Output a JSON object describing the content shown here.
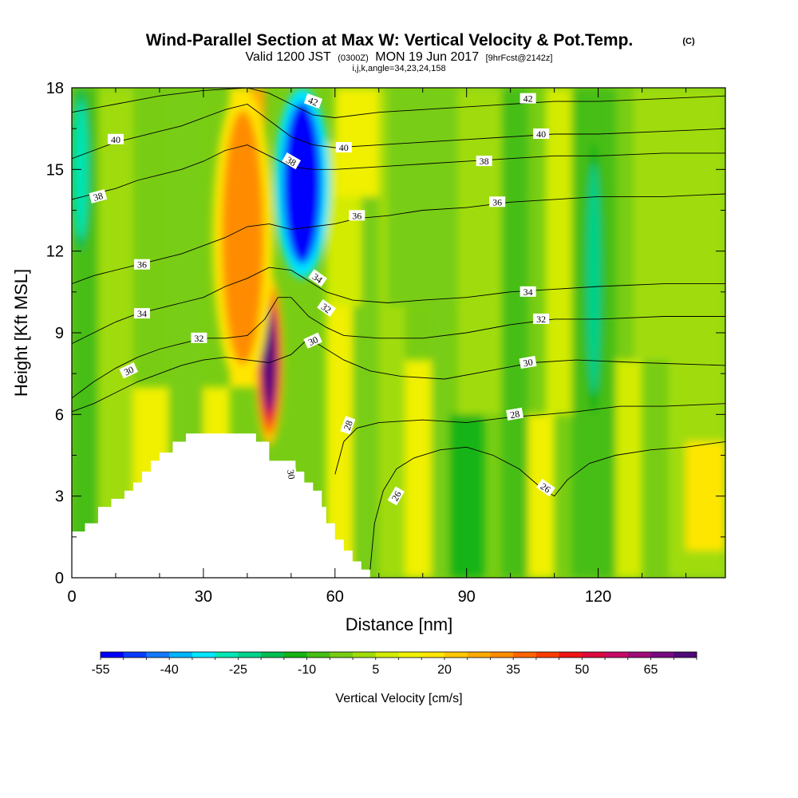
{
  "title": "Wind-Parallel Section at Max W: Vertical Velocity & Pot.Temp.",
  "title_mark": "(C)",
  "subtitle_valid": "Valid 1200 JST",
  "subtitle_zulu": "(0300Z)",
  "subtitle_date": "MON 19 Jun 2017",
  "subtitle_fcst": "[9hrFcst@2142z]",
  "params": "i,j,k,angle=34,23,24,158",
  "chart_data": {
    "type": "heatmap",
    "xlabel": "Distance [nm]",
    "ylabel": "Height [Kft MSL]",
    "xlim": [
      0,
      149
    ],
    "ylim": [
      0,
      18
    ],
    "x_ticks": [
      0,
      30,
      60,
      90,
      120
    ],
    "y_ticks": [
      0,
      3,
      6,
      9,
      12,
      15,
      18
    ],
    "field_filled": "Vertical Velocity",
    "field_contoured": "Potential Temperature",
    "colorbar": {
      "label": "Vertical Velocity [cm/s]",
      "min": -55,
      "max": 80,
      "step": 5,
      "tick_labels": [
        -55,
        -40,
        -25,
        -10,
        5,
        20,
        35,
        50,
        65
      ],
      "colors": [
        "#0000ff",
        "#0a3cff",
        "#1478ff",
        "#00b4ff",
        "#00e6ff",
        "#00e6b4",
        "#00d28c",
        "#00be50",
        "#14b414",
        "#46be14",
        "#78cd14",
        "#a0dc0a",
        "#d2eb00",
        "#f0f000",
        "#ffe600",
        "#ffc800",
        "#ffaa00",
        "#ff8c00",
        "#ff6400",
        "#ff3c00",
        "#f01414",
        "#dc0a3c",
        "#c80a64",
        "#a00a78",
        "#780a82",
        "#500a78"
      ]
    },
    "terrain": [
      [
        0,
        1.7
      ],
      [
        1,
        1.7
      ],
      [
        3,
        1.7
      ],
      [
        3,
        2.0
      ],
      [
        6,
        2.0
      ],
      [
        6,
        2.6
      ],
      [
        9,
        2.6
      ],
      [
        9,
        2.9
      ],
      [
        12,
        2.9
      ],
      [
        12,
        3.2
      ],
      [
        14,
        3.2
      ],
      [
        14,
        3.5
      ],
      [
        16,
        3.5
      ],
      [
        16,
        3.9
      ],
      [
        18,
        3.9
      ],
      [
        18,
        4.3
      ],
      [
        20,
        4.3
      ],
      [
        20,
        4.6
      ],
      [
        23,
        4.6
      ],
      [
        23,
        5.0
      ],
      [
        26,
        5.0
      ],
      [
        26,
        5.3
      ],
      [
        42,
        5.3
      ],
      [
        42,
        5.0
      ],
      [
        45,
        5.0
      ],
      [
        45,
        4.3
      ],
      [
        51,
        4.3
      ],
      [
        51,
        3.9
      ],
      [
        53,
        3.9
      ],
      [
        53,
        3.5
      ],
      [
        55,
        3.5
      ],
      [
        55,
        3.2
      ],
      [
        57,
        3.2
      ],
      [
        57,
        2.6
      ],
      [
        58,
        2.6
      ],
      [
        58,
        2.0
      ],
      [
        60,
        2.0
      ],
      [
        60,
        1.4
      ],
      [
        62,
        1.4
      ],
      [
        62,
        1.0
      ],
      [
        64,
        1.0
      ],
      [
        64,
        0.6
      ],
      [
        66,
        0.6
      ],
      [
        66,
        0.3
      ],
      [
        68,
        0.3
      ]
    ],
    "contours": [
      {
        "level": 26,
        "points": [
          [
            68,
            0.3
          ],
          [
            69,
            2.0
          ],
          [
            71,
            3.2
          ],
          [
            74,
            4.0
          ],
          [
            78,
            4.4
          ],
          [
            84,
            4.7
          ],
          [
            90,
            4.8
          ],
          [
            96,
            4.5
          ],
          [
            102,
            4.0
          ],
          [
            107,
            3.3
          ],
          [
            110,
            3.0
          ],
          [
            113,
            3.6
          ],
          [
            118,
            4.2
          ],
          [
            124,
            4.5
          ],
          [
            132,
            4.7
          ],
          [
            140,
            4.8
          ],
          [
            149,
            5.0
          ]
        ]
      },
      {
        "level": 28,
        "points": [
          [
            60,
            3.8
          ],
          [
            62,
            5.0
          ],
          [
            65,
            5.5
          ],
          [
            70,
            5.7
          ],
          [
            80,
            5.8
          ],
          [
            90,
            5.7
          ],
          [
            100,
            5.9
          ],
          [
            108,
            6.0
          ],
          [
            115,
            6.1
          ],
          [
            125,
            6.3
          ],
          [
            135,
            6.3
          ],
          [
            149,
            6.4
          ]
        ]
      },
      {
        "level": 30,
        "points": [
          [
            0,
            6.1
          ],
          [
            5,
            6.4
          ],
          [
            10,
            6.8
          ],
          [
            15,
            7.2
          ],
          [
            20,
            7.5
          ],
          [
            25,
            7.8
          ],
          [
            30,
            8.0
          ],
          [
            35,
            8.1
          ],
          [
            40,
            8.0
          ],
          [
            45,
            7.9
          ],
          [
            50,
            8.2
          ],
          [
            54,
            8.8
          ],
          [
            58,
            8.4
          ],
          [
            62,
            8.0
          ],
          [
            68,
            7.6
          ],
          [
            75,
            7.4
          ],
          [
            85,
            7.3
          ],
          [
            95,
            7.6
          ],
          [
            105,
            7.9
          ],
          [
            115,
            8.0
          ],
          [
            130,
            7.9
          ],
          [
            149,
            7.8
          ]
        ]
      },
      {
        "level": 32,
        "points": [
          [
            0,
            6.6
          ],
          [
            5,
            7.2
          ],
          [
            10,
            7.7
          ],
          [
            15,
            8.1
          ],
          [
            20,
            8.4
          ],
          [
            25,
            8.6
          ],
          [
            30,
            8.8
          ],
          [
            35,
            8.8
          ],
          [
            40,
            8.9
          ],
          [
            44,
            9.5
          ],
          [
            47,
            10.3
          ],
          [
            50,
            10.3
          ],
          [
            54,
            9.6
          ],
          [
            58,
            9.2
          ],
          [
            62,
            8.9
          ],
          [
            70,
            8.8
          ],
          [
            80,
            8.8
          ],
          [
            90,
            9.0
          ],
          [
            100,
            9.3
          ],
          [
            110,
            9.5
          ],
          [
            120,
            9.5
          ],
          [
            135,
            9.6
          ],
          [
            149,
            9.6
          ]
        ]
      },
      {
        "level": 34,
        "points": [
          [
            0,
            8.6
          ],
          [
            5,
            9.0
          ],
          [
            10,
            9.4
          ],
          [
            15,
            9.7
          ],
          [
            20,
            9.9
          ],
          [
            25,
            10.1
          ],
          [
            30,
            10.3
          ],
          [
            35,
            10.7
          ],
          [
            40,
            11.0
          ],
          [
            45,
            11.4
          ],
          [
            50,
            11.3
          ],
          [
            54,
            10.9
          ],
          [
            58,
            10.5
          ],
          [
            64,
            10.2
          ],
          [
            72,
            10.1
          ],
          [
            80,
            10.2
          ],
          [
            90,
            10.3
          ],
          [
            100,
            10.5
          ],
          [
            110,
            10.6
          ],
          [
            120,
            10.7
          ],
          [
            135,
            10.8
          ],
          [
            149,
            10.8
          ]
        ]
      },
      {
        "level": 36,
        "points": [
          [
            0,
            10.8
          ],
          [
            5,
            11.1
          ],
          [
            10,
            11.3
          ],
          [
            15,
            11.5
          ],
          [
            20,
            11.7
          ],
          [
            25,
            11.9
          ],
          [
            30,
            12.2
          ],
          [
            35,
            12.5
          ],
          [
            40,
            12.9
          ],
          [
            45,
            13.0
          ],
          [
            50,
            12.8
          ],
          [
            55,
            12.9
          ],
          [
            60,
            13.0
          ],
          [
            65,
            13.2
          ],
          [
            72,
            13.3
          ],
          [
            80,
            13.5
          ],
          [
            90,
            13.6
          ],
          [
            100,
            13.8
          ],
          [
            110,
            13.9
          ],
          [
            120,
            14.0
          ],
          [
            135,
            14.0
          ],
          [
            149,
            14.1
          ]
        ]
      },
      {
        "level": 38,
        "points": [
          [
            0,
            13.9
          ],
          [
            5,
            14.1
          ],
          [
            10,
            14.3
          ],
          [
            15,
            14.6
          ],
          [
            20,
            14.8
          ],
          [
            25,
            15.0
          ],
          [
            30,
            15.3
          ],
          [
            35,
            15.7
          ],
          [
            40,
            15.9
          ],
          [
            45,
            15.5
          ],
          [
            50,
            15.1
          ],
          [
            55,
            15.0
          ],
          [
            60,
            15.0
          ],
          [
            70,
            15.1
          ],
          [
            80,
            15.2
          ],
          [
            90,
            15.3
          ],
          [
            100,
            15.4
          ],
          [
            110,
            15.5
          ],
          [
            120,
            15.5
          ],
          [
            135,
            15.6
          ],
          [
            149,
            15.6
          ]
        ]
      },
      {
        "level": 40,
        "points": [
          [
            0,
            15.4
          ],
          [
            5,
            15.7
          ],
          [
            10,
            16.0
          ],
          [
            15,
            16.2
          ],
          [
            20,
            16.4
          ],
          [
            25,
            16.6
          ],
          [
            30,
            16.9
          ],
          [
            35,
            17.2
          ],
          [
            40,
            17.4
          ],
          [
            45,
            16.8
          ],
          [
            50,
            16.2
          ],
          [
            55,
            15.9
          ],
          [
            60,
            15.8
          ],
          [
            70,
            15.9
          ],
          [
            80,
            16.0
          ],
          [
            90,
            16.1
          ],
          [
            100,
            16.2
          ],
          [
            110,
            16.3
          ],
          [
            120,
            16.3
          ],
          [
            135,
            16.4
          ],
          [
            149,
            16.5
          ]
        ]
      },
      {
        "level": 42,
        "points": [
          [
            0,
            17.1
          ],
          [
            10,
            17.4
          ],
          [
            20,
            17.7
          ],
          [
            30,
            17.9
          ],
          [
            40,
            18.0
          ],
          [
            45,
            17.8
          ],
          [
            50,
            17.4
          ],
          [
            55,
            17.0
          ],
          [
            60,
            16.9
          ],
          [
            70,
            17.1
          ],
          [
            80,
            17.2
          ],
          [
            90,
            17.3
          ],
          [
            100,
            17.4
          ],
          [
            110,
            17.5
          ],
          [
            120,
            17.5
          ],
          [
            135,
            17.6
          ],
          [
            149,
            17.7
          ]
        ]
      }
    ],
    "contour_labels": [
      {
        "text": "42",
        "x": 55,
        "y": 17.5,
        "angle": 20
      },
      {
        "text": "42",
        "x": 104,
        "y": 17.6,
        "angle": 0
      },
      {
        "text": "40",
        "x": 10,
        "y": 16.1,
        "angle": 0
      },
      {
        "text": "40",
        "x": 62,
        "y": 15.8,
        "angle": 0
      },
      {
        "text": "40",
        "x": 107,
        "y": 16.3,
        "angle": 0
      },
      {
        "text": "38",
        "x": 50,
        "y": 15.3,
        "angle": 30
      },
      {
        "text": "38",
        "x": 6,
        "y": 14.0,
        "angle": -15
      },
      {
        "text": "38",
        "x": 94,
        "y": 15.3,
        "angle": 0
      },
      {
        "text": "36",
        "x": 65,
        "y": 13.3,
        "angle": 0
      },
      {
        "text": "36",
        "x": 97,
        "y": 13.8,
        "angle": 0
      },
      {
        "text": "36",
        "x": 16,
        "y": 11.5,
        "angle": 0
      },
      {
        "text": "34",
        "x": 56,
        "y": 11.0,
        "angle": 35
      },
      {
        "text": "34",
        "x": 104,
        "y": 10.5,
        "angle": 0
      },
      {
        "text": "34",
        "x": 16,
        "y": 9.7,
        "angle": 0
      },
      {
        "text": "32",
        "x": 58,
        "y": 9.9,
        "angle": 35
      },
      {
        "text": "32",
        "x": 107,
        "y": 9.5,
        "angle": 0
      },
      {
        "text": "32",
        "x": 29,
        "y": 8.8,
        "angle": 0
      },
      {
        "text": "30",
        "x": 55,
        "y": 8.7,
        "angle": -25
      },
      {
        "text": "30",
        "x": 104,
        "y": 7.9,
        "angle": -10
      },
      {
        "text": "30",
        "x": 13,
        "y": 7.6,
        "angle": -25
      },
      {
        "text": "30",
        "x": 50,
        "y": 3.8,
        "angle": 80
      },
      {
        "text": "28",
        "x": 63,
        "y": 5.6,
        "angle": -70
      },
      {
        "text": "28",
        "x": 101,
        "y": 6.0,
        "angle": -10
      },
      {
        "text": "26",
        "x": 74,
        "y": 3.0,
        "angle": -60
      },
      {
        "text": "26",
        "x": 108,
        "y": 3.3,
        "angle": 35
      }
    ],
    "features": [
      {
        "name": "strong updraft core",
        "x": 45,
        "y_range": [
          5,
          11
        ],
        "peak": 80
      },
      {
        "name": "updraft plume aloft",
        "x_range": [
          33,
          45
        ],
        "y_range": [
          7,
          18
        ],
        "value": 30
      },
      {
        "name": "downdraft core aloft",
        "x_range": [
          47,
          58
        ],
        "y_range": [
          11,
          18
        ],
        "value": -55
      },
      {
        "name": "downdraft band",
        "x": 119,
        "y_range": [
          6,
          16
        ],
        "value": -25
      },
      {
        "name": "downdraft band left edge",
        "x": 2,
        "y_range": [
          12,
          18
        ],
        "value": -30
      }
    ]
  }
}
